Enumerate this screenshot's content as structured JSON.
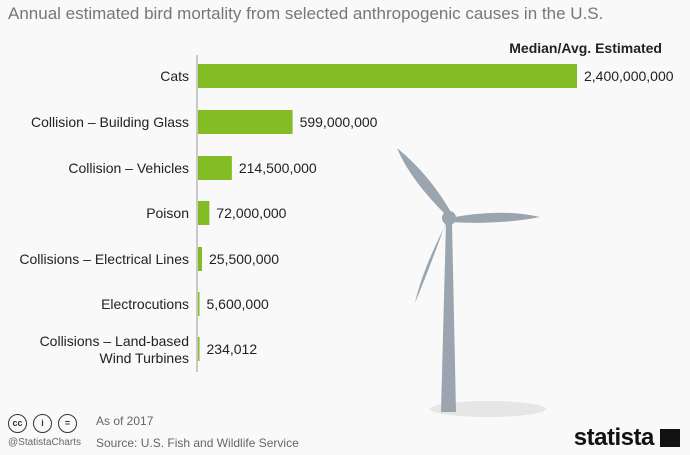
{
  "chart_data": {
    "type": "bar",
    "orientation": "horizontal",
    "title": "Annual estimated bird mortality from selected anthropogenic causes in the U.S.",
    "column_header": "Median/Avg. Estimated",
    "categories": [
      "Cats",
      "Collision – Building Glass",
      "Collision – Vehicles",
      "Poison",
      "Collisions – Electrical Lines",
      "Electrocutions",
      "Collisions – Land-based Wind Turbines"
    ],
    "values": [
      2400000000,
      599000000,
      214500000,
      72000000,
      25500000,
      5600000,
      234012
    ],
    "value_labels": [
      "2,400,000,000",
      "599,000,000",
      "214,500,000",
      "72,000,000",
      "25,500,000",
      "5,600,000",
      "234,012"
    ],
    "bar_color": "#84bc26",
    "grid": false
  },
  "footer": {
    "note": "As of 2017",
    "source": "Source: U.S. Fish and Wildlife Service",
    "handle": "@StatistaCharts",
    "brand": "statista"
  },
  "colors": {
    "turbine": "#9aa5af",
    "shadow": "#e6e6e6"
  }
}
